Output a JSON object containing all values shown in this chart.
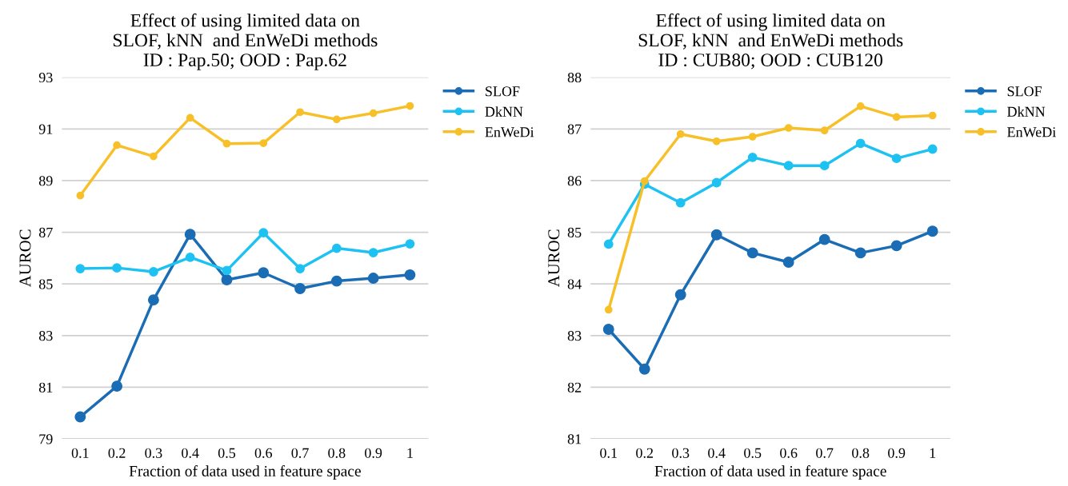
{
  "chart_data": [
    {
      "type": "line",
      "title": "Effect of using limited data on\nSLOF, kNN  and EnWeDi methods\nID : Pap.50; OOD : Pap.62",
      "xlabel": "Fraction of data used in feature space",
      "ylabel": "AUROC",
      "categories": [
        "0.1",
        "0.2",
        "0.3",
        "0.4",
        "0.5",
        "0.6",
        "0.7",
        "0.8",
        "0.9",
        "1"
      ],
      "ylim": [
        79,
        93
      ],
      "yticks": [
        79,
        81,
        83,
        85,
        87,
        89,
        91,
        93
      ],
      "grid": "y",
      "legend": "top right",
      "marker": "circle",
      "line_style": "solid",
      "series": [
        {
          "name": "SLOF",
          "color": "#1a6db5",
          "values": [
            79.85,
            81.04,
            84.38,
            86.92,
            85.16,
            85.43,
            84.82,
            85.11,
            85.22,
            85.35
          ]
        },
        {
          "name": "DkNN",
          "color": "#1ec2f2",
          "values": [
            85.59,
            85.62,
            85.47,
            86.03,
            85.52,
            86.98,
            85.59,
            86.38,
            86.21,
            86.55
          ]
        },
        {
          "name": "EnWeDi",
          "color": "#f7c028",
          "values": [
            88.42,
            90.37,
            89.94,
            91.43,
            90.43,
            90.45,
            91.65,
            91.37,
            91.61,
            91.89
          ]
        }
      ]
    },
    {
      "type": "line",
      "title": "Effect of using limited data on\nSLOF, kNN  and EnWeDi methods\nID : CUB80; OOD : CUB120",
      "xlabel": "Fraction of data used in feature space",
      "ylabel": "AUROC",
      "categories": [
        "0.1",
        "0.2",
        "0.3",
        "0.4",
        "0.5",
        "0.6",
        "0.7",
        "0.8",
        "0.9",
        "1"
      ],
      "ylim": [
        81,
        88
      ],
      "yticks": [
        81,
        82,
        83,
        84,
        85,
        86,
        87,
        88
      ],
      "grid": "y",
      "legend": "top right",
      "marker": "circle",
      "line_style": "solid",
      "series": [
        {
          "name": "SLOF",
          "color": "#1a6db5",
          "values": [
            83.12,
            82.35,
            83.79,
            84.95,
            84.6,
            84.42,
            84.86,
            84.6,
            84.74,
            85.02
          ]
        },
        {
          "name": "DkNN",
          "color": "#1ec2f2",
          "values": [
            84.77,
            85.93,
            85.57,
            85.96,
            86.45,
            86.29,
            86.29,
            86.72,
            86.43,
            86.61
          ]
        },
        {
          "name": "EnWeDi",
          "color": "#f7c028",
          "values": [
            83.5,
            85.99,
            86.9,
            86.76,
            86.85,
            87.02,
            86.97,
            87.44,
            87.23,
            87.26
          ]
        }
      ]
    }
  ]
}
